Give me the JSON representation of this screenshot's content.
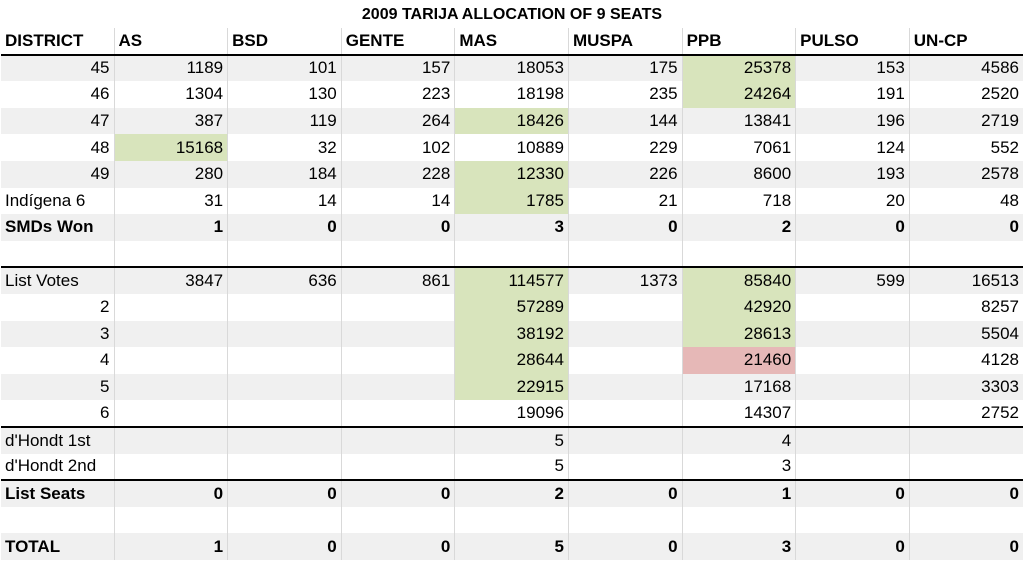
{
  "title": "2009 TARIJA ALLOCATION OF 9 SEATS",
  "headers": [
    "DISTRICT",
    "AS",
    "BSD",
    "GENTE",
    "MAS",
    "MUSPA",
    "PPB",
    "PULSO",
    "UN-CP"
  ],
  "districts": [
    {
      "label": "45",
      "values": [
        "1189",
        "101",
        "157",
        "18053",
        "175",
        "25378",
        "153",
        "4586"
      ]
    },
    {
      "label": "46",
      "values": [
        "1304",
        "130",
        "223",
        "18198",
        "235",
        "24264",
        "191",
        "2520"
      ]
    },
    {
      "label": "47",
      "values": [
        "387",
        "119",
        "264",
        "18426",
        "144",
        "13841",
        "196",
        "2719"
      ]
    },
    {
      "label": "48",
      "values": [
        "15168",
        "32",
        "102",
        "10889",
        "229",
        "7061",
        "124",
        "552"
      ]
    },
    {
      "label": "49",
      "values": [
        "280",
        "184",
        "228",
        "12330",
        "226",
        "8600",
        "193",
        "2578"
      ]
    },
    {
      "label": "Indígena 6",
      "values": [
        "31",
        "14",
        "14",
        "1785",
        "21",
        "718",
        "20",
        "48"
      ]
    }
  ],
  "smds_won": {
    "label": "SMDs Won",
    "values": [
      "1",
      "0",
      "0",
      "3",
      "0",
      "2",
      "0",
      "0"
    ]
  },
  "list_votes": {
    "label": "List Votes",
    "values": [
      "3847",
      "636",
      "861",
      "114577",
      "1373",
      "85840",
      "599",
      "16513"
    ]
  },
  "divisors": [
    {
      "label": "2",
      "values": [
        "",
        "",
        "",
        "57289",
        "",
        "42920",
        "",
        "8257"
      ]
    },
    {
      "label": "3",
      "values": [
        "",
        "",
        "",
        "38192",
        "",
        "28613",
        "",
        "5504"
      ]
    },
    {
      "label": "4",
      "values": [
        "",
        "",
        "",
        "28644",
        "",
        "21460",
        "",
        "4128"
      ]
    },
    {
      "label": "5",
      "values": [
        "",
        "",
        "",
        "22915",
        "",
        "17168",
        "",
        "3303"
      ]
    },
    {
      "label": "6",
      "values": [
        "",
        "",
        "",
        "19096",
        "",
        "14307",
        "",
        "2752"
      ]
    }
  ],
  "dhondt_1st": {
    "label": "d'Hondt 1st",
    "values": [
      "",
      "",
      "",
      "5",
      "",
      "4",
      "",
      ""
    ]
  },
  "dhondt_2nd": {
    "label": "d'Hondt 2nd",
    "values": [
      "",
      "",
      "",
      "5",
      "",
      "3",
      "",
      ""
    ]
  },
  "list_seats": {
    "label": "List Seats",
    "values": [
      "0",
      "0",
      "0",
      "2",
      "0",
      "1",
      "0",
      "0"
    ]
  },
  "total": {
    "label": "TOTAL",
    "values": [
      "1",
      "0",
      "0",
      "5",
      "0",
      "3",
      "0",
      "0"
    ]
  },
  "colors": {
    "highlight_green": "#d8e4bc",
    "highlight_red": "#e6b8b7",
    "row_shade": "#f0f0f0"
  }
}
